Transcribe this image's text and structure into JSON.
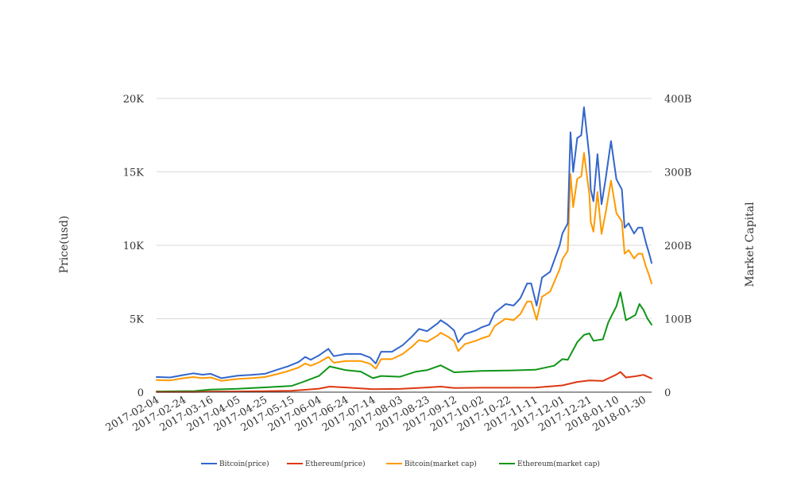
{
  "chart_data": {
    "type": "line",
    "title": "",
    "xlabel": "",
    "ylabel_left": "Price(usd)",
    "ylabel_right": "Market Capital",
    "x_start": "2017-02-04",
    "x_end": "2018-02-05",
    "x_ticks": [
      "2017-02-04",
      "2017-02-24",
      "2017-03-16",
      "2017-04-05",
      "2017-04-25",
      "2017-05-15",
      "2017-06-04",
      "2017-06-24",
      "2017-07-14",
      "2017-08-03",
      "2017-08-23",
      "2017-09-12",
      "2017-10-02",
      "2017-10-22",
      "2017-11-11",
      "2017-12-01",
      "2017-12-21",
      "2018-01-10",
      "2018-01-30"
    ],
    "y_left_ticks": [
      {
        "value": 0,
        "label": "0"
      },
      {
        "value": 5000,
        "label": "5K"
      },
      {
        "value": 10000,
        "label": "10K"
      },
      {
        "value": 15000,
        "label": "15K"
      },
      {
        "value": 20000,
        "label": "20K"
      }
    ],
    "y_right_ticks": [
      {
        "value": 0,
        "label": "0"
      },
      {
        "value": 100,
        "label": "100B"
      },
      {
        "value": 200,
        "label": "200B"
      },
      {
        "value": 300,
        "label": "300B"
      },
      {
        "value": 400,
        "label": "400B"
      }
    ],
    "ylim_left": [
      0,
      20000
    ],
    "ylim_right": [
      0,
      400
    ],
    "grid": true,
    "legend_position": "bottom",
    "series": [
      {
        "name": "Bitcoin(price)",
        "axis": "left",
        "color": "#3366cc",
        "points": [
          [
            "2017-02-04",
            1030
          ],
          [
            "2017-02-14",
            1000
          ],
          [
            "2017-02-24",
            1170
          ],
          [
            "2017-03-03",
            1280
          ],
          [
            "2017-03-10",
            1190
          ],
          [
            "2017-03-16",
            1250
          ],
          [
            "2017-03-24",
            950
          ],
          [
            "2017-04-05",
            1120
          ],
          [
            "2017-04-15",
            1180
          ],
          [
            "2017-04-25",
            1250
          ],
          [
            "2017-05-05",
            1550
          ],
          [
            "2017-05-12",
            1750
          ],
          [
            "2017-05-20",
            2050
          ],
          [
            "2017-05-25",
            2400
          ],
          [
            "2017-05-29",
            2200
          ],
          [
            "2017-06-04",
            2500
          ],
          [
            "2017-06-11",
            2950
          ],
          [
            "2017-06-15",
            2450
          ],
          [
            "2017-06-24",
            2600
          ],
          [
            "2017-07-05",
            2600
          ],
          [
            "2017-07-12",
            2350
          ],
          [
            "2017-07-16",
            1950
          ],
          [
            "2017-07-20",
            2750
          ],
          [
            "2017-07-28",
            2750
          ],
          [
            "2017-08-05",
            3200
          ],
          [
            "2017-08-12",
            3800
          ],
          [
            "2017-08-17",
            4300
          ],
          [
            "2017-08-23",
            4150
          ],
          [
            "2017-08-31",
            4700
          ],
          [
            "2017-09-02",
            4900
          ],
          [
            "2017-09-07",
            4600
          ],
          [
            "2017-09-12",
            4200
          ],
          [
            "2017-09-15",
            3400
          ],
          [
            "2017-09-20",
            3950
          ],
          [
            "2017-09-28",
            4200
          ],
          [
            "2017-10-02",
            4400
          ],
          [
            "2017-10-08",
            4600
          ],
          [
            "2017-10-12",
            5400
          ],
          [
            "2017-10-20",
            6000
          ],
          [
            "2017-10-26",
            5900
          ],
          [
            "2017-10-31",
            6400
          ],
          [
            "2017-11-05",
            7400
          ],
          [
            "2017-11-08",
            7400
          ],
          [
            "2017-11-12",
            5900
          ],
          [
            "2017-11-16",
            7800
          ],
          [
            "2017-11-22",
            8200
          ],
          [
            "2017-11-29",
            10000
          ],
          [
            "2017-12-01",
            10800
          ],
          [
            "2017-12-05",
            11500
          ],
          [
            "2017-12-07",
            17700
          ],
          [
            "2017-12-09",
            15000
          ],
          [
            "2017-12-12",
            17300
          ],
          [
            "2017-12-15",
            17500
          ],
          [
            "2017-12-17",
            19400
          ],
          [
            "2017-12-21",
            16000
          ],
          [
            "2017-12-22",
            13800
          ],
          [
            "2017-12-24",
            13000
          ],
          [
            "2017-12-27",
            16200
          ],
          [
            "2017-12-30",
            12800
          ],
          [
            "2018-01-02",
            14500
          ],
          [
            "2018-01-06",
            17100
          ],
          [
            "2018-01-10",
            14500
          ],
          [
            "2018-01-14",
            13800
          ],
          [
            "2018-01-16",
            11200
          ],
          [
            "2018-01-19",
            11500
          ],
          [
            "2018-01-23",
            10800
          ],
          [
            "2018-01-26",
            11200
          ],
          [
            "2018-01-29",
            11200
          ],
          [
            "2018-02-01",
            10100
          ],
          [
            "2018-02-03",
            9500
          ],
          [
            "2018-02-05",
            8800
          ]
        ]
      },
      {
        "name": "Ethereum(price)",
        "axis": "left",
        "color": "#dc3912",
        "points": [
          [
            "2017-02-04",
            12
          ],
          [
            "2017-03-04",
            15
          ],
          [
            "2017-03-16",
            40
          ],
          [
            "2017-04-05",
            50
          ],
          [
            "2017-04-25",
            70
          ],
          [
            "2017-05-15",
            90
          ],
          [
            "2017-06-04",
            240
          ],
          [
            "2017-06-12",
            380
          ],
          [
            "2017-06-24",
            320
          ],
          [
            "2017-07-14",
            200
          ],
          [
            "2017-08-03",
            220
          ],
          [
            "2017-08-23",
            320
          ],
          [
            "2017-09-02",
            380
          ],
          [
            "2017-09-12",
            280
          ],
          [
            "2017-10-02",
            300
          ],
          [
            "2017-10-22",
            300
          ],
          [
            "2017-11-11",
            310
          ],
          [
            "2017-12-01",
            460
          ],
          [
            "2017-12-12",
            700
          ],
          [
            "2017-12-21",
            800
          ],
          [
            "2017-12-31",
            760
          ],
          [
            "2018-01-10",
            1200
          ],
          [
            "2018-01-13",
            1380
          ],
          [
            "2018-01-17",
            1000
          ],
          [
            "2018-01-24",
            1080
          ],
          [
            "2018-01-30",
            1180
          ],
          [
            "2018-02-05",
            930
          ]
        ]
      },
      {
        "name": "Bitcoin(market cap)",
        "axis": "right",
        "color": "#ff9900",
        "points": [
          [
            "2017-02-04",
            16.5
          ],
          [
            "2017-02-14",
            16
          ],
          [
            "2017-02-24",
            19
          ],
          [
            "2017-03-03",
            20.5
          ],
          [
            "2017-03-10",
            19
          ],
          [
            "2017-03-16",
            20
          ],
          [
            "2017-03-24",
            15.5
          ],
          [
            "2017-04-05",
            18
          ],
          [
            "2017-04-15",
            19
          ],
          [
            "2017-04-25",
            20.5
          ],
          [
            "2017-05-05",
            25
          ],
          [
            "2017-05-12",
            28.5
          ],
          [
            "2017-05-20",
            33.5
          ],
          [
            "2017-05-25",
            39
          ],
          [
            "2017-05-29",
            36
          ],
          [
            "2017-06-04",
            40.5
          ],
          [
            "2017-06-11",
            48
          ],
          [
            "2017-06-15",
            40
          ],
          [
            "2017-06-24",
            42.5
          ],
          [
            "2017-07-05",
            42.5
          ],
          [
            "2017-07-12",
            38.5
          ],
          [
            "2017-07-16",
            32
          ],
          [
            "2017-07-20",
            45
          ],
          [
            "2017-07-28",
            45
          ],
          [
            "2017-08-05",
            52
          ],
          [
            "2017-08-12",
            62
          ],
          [
            "2017-08-17",
            71
          ],
          [
            "2017-08-23",
            68.5
          ],
          [
            "2017-08-31",
            77.5
          ],
          [
            "2017-09-02",
            81
          ],
          [
            "2017-09-07",
            76
          ],
          [
            "2017-09-12",
            69.5
          ],
          [
            "2017-09-15",
            56
          ],
          [
            "2017-09-20",
            65.5
          ],
          [
            "2017-09-28",
            70
          ],
          [
            "2017-10-02",
            73
          ],
          [
            "2017-10-08",
            76.5
          ],
          [
            "2017-10-12",
            90
          ],
          [
            "2017-10-20",
            100
          ],
          [
            "2017-10-26",
            98
          ],
          [
            "2017-10-31",
            106.5
          ],
          [
            "2017-11-05",
            123.5
          ],
          [
            "2017-11-08",
            123.5
          ],
          [
            "2017-11-12",
            98.5
          ],
          [
            "2017-11-16",
            130
          ],
          [
            "2017-11-22",
            137
          ],
          [
            "2017-11-29",
            167.5
          ],
          [
            "2017-12-01",
            181
          ],
          [
            "2017-12-05",
            192.5
          ],
          [
            "2017-12-07",
            297
          ],
          [
            "2017-12-09",
            252
          ],
          [
            "2017-12-12",
            290.5
          ],
          [
            "2017-12-15",
            294
          ],
          [
            "2017-12-17",
            326
          ],
          [
            "2017-12-21",
            269
          ],
          [
            "2017-12-22",
            232
          ],
          [
            "2017-12-24",
            218.5
          ],
          [
            "2017-12-27",
            272.5
          ],
          [
            "2017-12-30",
            215.5
          ],
          [
            "2018-01-02",
            244
          ],
          [
            "2018-01-06",
            288
          ],
          [
            "2018-01-10",
            244
          ],
          [
            "2018-01-14",
            232.5
          ],
          [
            "2018-01-16",
            188.5
          ],
          [
            "2018-01-19",
            193.5
          ],
          [
            "2018-01-23",
            182
          ],
          [
            "2018-01-26",
            188.5
          ],
          [
            "2018-01-29",
            188.5
          ],
          [
            "2018-02-01",
            170
          ],
          [
            "2018-02-03",
            160
          ],
          [
            "2018-02-05",
            148
          ]
        ]
      },
      {
        "name": "Ethereum(market cap)",
        "axis": "right",
        "color": "#109618",
        "points": [
          [
            "2017-02-04",
            1
          ],
          [
            "2017-03-04",
            1.5
          ],
          [
            "2017-03-16",
            3.5
          ],
          [
            "2017-04-05",
            4.5
          ],
          [
            "2017-04-25",
            6.5
          ],
          [
            "2017-05-15",
            8.5
          ],
          [
            "2017-05-25",
            15
          ],
          [
            "2017-06-04",
            22
          ],
          [
            "2017-06-12",
            35
          ],
          [
            "2017-06-24",
            30
          ],
          [
            "2017-07-05",
            28
          ],
          [
            "2017-07-14",
            19
          ],
          [
            "2017-07-20",
            22
          ],
          [
            "2017-08-03",
            21
          ],
          [
            "2017-08-15",
            28
          ],
          [
            "2017-08-23",
            30
          ],
          [
            "2017-09-02",
            36.5
          ],
          [
            "2017-09-12",
            27
          ],
          [
            "2017-10-02",
            29
          ],
          [
            "2017-10-22",
            29.5
          ],
          [
            "2017-11-11",
            30.5
          ],
          [
            "2017-11-25",
            36
          ],
          [
            "2017-12-01",
            45
          ],
          [
            "2017-12-05",
            44
          ],
          [
            "2017-12-12",
            68
          ],
          [
            "2017-12-17",
            78
          ],
          [
            "2017-12-21",
            80
          ],
          [
            "2017-12-24",
            70
          ],
          [
            "2017-12-31",
            72
          ],
          [
            "2018-01-04",
            95
          ],
          [
            "2018-01-10",
            117
          ],
          [
            "2018-01-13",
            136
          ],
          [
            "2018-01-17",
            98
          ],
          [
            "2018-01-24",
            105
          ],
          [
            "2018-01-27",
            120
          ],
          [
            "2018-01-30",
            112
          ],
          [
            "2018-02-02",
            100
          ],
          [
            "2018-02-05",
            92
          ]
        ]
      }
    ]
  }
}
